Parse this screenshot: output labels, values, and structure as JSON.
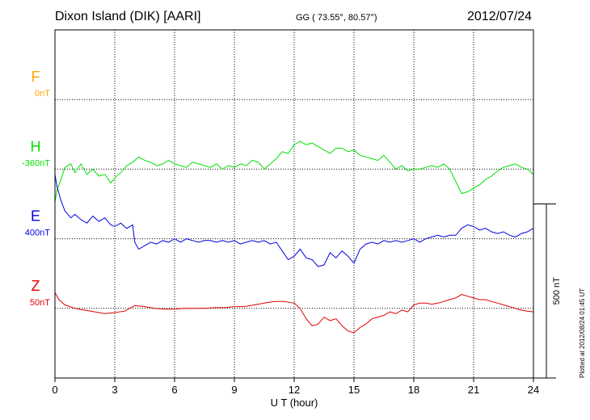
{
  "header": {
    "title": "Dixon Island (DIK)  [AARI]",
    "coords": "GG ( 73.55°,  80.57°)",
    "date": "2012/07/24"
  },
  "footer": {
    "plotted": "Plotted at 2012/08/24 01:45 UT"
  },
  "chart_data": {
    "type": "line",
    "title": "Dixon Island (DIK)  [AARI]",
    "xlabel": "U T (hour)",
    "ylabel": "",
    "xlim": [
      0,
      24
    ],
    "xticks": [
      0,
      3,
      6,
      9,
      12,
      15,
      18,
      21,
      24
    ],
    "xtick_labels": [
      "0",
      "3",
      "6",
      "9",
      "12",
      "15",
      "18",
      "21",
      "24"
    ],
    "grid": true,
    "y_units": "nT (offset per series, 1 grid division = 200 nT)",
    "scale_bar": {
      "label": "500 nT",
      "value_nT": 500
    },
    "series": [
      {
        "name": "F",
        "offset_label": "0nT",
        "color": "#ffa500",
        "baseline_row": 1,
        "x": [],
        "values": []
      },
      {
        "name": "H",
        "offset_label": "-360nT",
        "color": "#00e000",
        "baseline_row": 2,
        "x": [
          0,
          0.1,
          0.3,
          0.5,
          0.8,
          1.0,
          1.3,
          1.6,
          1.9,
          2.2,
          2.5,
          2.8,
          3.0,
          3.3,
          3.6,
          3.9,
          4.2,
          4.5,
          4.8,
          5.1,
          5.4,
          5.7,
          6.0,
          6.3,
          6.6,
          6.9,
          7.2,
          7.5,
          7.8,
          8.1,
          8.4,
          8.7,
          9.0,
          9.3,
          9.6,
          9.9,
          10.2,
          10.5,
          10.8,
          11.1,
          11.4,
          11.7,
          12.0,
          12.3,
          12.6,
          12.9,
          13.2,
          13.5,
          13.8,
          14.1,
          14.4,
          14.7,
          15.0,
          15.3,
          15.6,
          15.9,
          16.2,
          16.5,
          16.8,
          17.1,
          17.4,
          17.7,
          18.0,
          18.3,
          18.6,
          18.9,
          19.2,
          19.5,
          19.8,
          20.1,
          20.4,
          20.7,
          21.0,
          21.3,
          21.6,
          21.9,
          22.2,
          22.5,
          22.8,
          23.1,
          23.4,
          23.7,
          24.0
        ],
        "values": [
          -95,
          -60,
          -30,
          5,
          15,
          -10,
          15,
          -15,
          0,
          -20,
          -15,
          -40,
          -25,
          -10,
          10,
          20,
          35,
          25,
          20,
          10,
          15,
          25,
          15,
          10,
          5,
          20,
          15,
          10,
          5,
          15,
          0,
          10,
          5,
          15,
          10,
          25,
          20,
          0,
          15,
          30,
          50,
          45,
          70,
          80,
          70,
          75,
          65,
          55,
          45,
          60,
          60,
          50,
          55,
          40,
          35,
          30,
          25,
          40,
          20,
          0,
          10,
          -5,
          0,
          0,
          5,
          10,
          5,
          15,
          0,
          -35,
          -70,
          -65,
          -55,
          -45,
          -30,
          -20,
          -5,
          5,
          10,
          15,
          5,
          0,
          -15
        ]
      },
      {
        "name": "E",
        "offset_label": "400nT",
        "color": "#0000e0",
        "baseline_row": 3,
        "x": [
          0,
          0.1,
          0.3,
          0.5,
          0.8,
          1.0,
          1.3,
          1.6,
          1.9,
          2.2,
          2.5,
          2.8,
          3.0,
          3.3,
          3.6,
          3.9,
          4.0,
          4.2,
          4.5,
          4.8,
          5.1,
          5.4,
          5.7,
          6.0,
          6.3,
          6.6,
          6.9,
          7.2,
          7.5,
          7.8,
          8.1,
          8.4,
          8.7,
          9.0,
          9.3,
          9.6,
          9.9,
          10.2,
          10.5,
          10.8,
          11.1,
          11.4,
          11.7,
          12.0,
          12.3,
          12.6,
          12.9,
          13.2,
          13.5,
          13.8,
          14.1,
          14.4,
          14.7,
          15.0,
          15.3,
          15.6,
          15.9,
          16.2,
          16.5,
          16.8,
          17.1,
          17.4,
          17.7,
          18.0,
          18.3,
          18.6,
          18.9,
          19.2,
          19.5,
          19.8,
          20.1,
          20.4,
          20.7,
          21.0,
          21.3,
          21.6,
          21.9,
          22.2,
          22.5,
          22.8,
          23.1,
          23.4,
          23.7,
          24.0
        ],
        "values": [
          185,
          150,
          110,
          80,
          60,
          70,
          55,
          45,
          65,
          50,
          60,
          40,
          35,
          45,
          30,
          40,
          -10,
          -30,
          -20,
          -10,
          -15,
          -5,
          -10,
          0,
          -10,
          0,
          -5,
          -10,
          -5,
          -5,
          -10,
          -5,
          -10,
          -5,
          -15,
          -10,
          -5,
          -10,
          -5,
          -15,
          -10,
          -35,
          -60,
          -50,
          -30,
          -55,
          -60,
          -80,
          -75,
          -40,
          -55,
          -35,
          -50,
          -70,
          -30,
          -15,
          -10,
          -15,
          -5,
          -10,
          -5,
          -10,
          -5,
          0,
          -10,
          0,
          5,
          10,
          5,
          10,
          10,
          30,
          40,
          35,
          25,
          30,
          20,
          15,
          20,
          10,
          5,
          15,
          20,
          30
        ]
      },
      {
        "name": "Z",
        "offset_label": "50nT",
        "color": "#e00000",
        "baseline_row": 4,
        "x": [
          0,
          0.2,
          0.5,
          1.0,
          1.5,
          2.0,
          2.5,
          3.0,
          3.5,
          4.0,
          4.5,
          5.0,
          5.5,
          6.0,
          6.5,
          7.0,
          7.5,
          8.0,
          8.5,
          9.0,
          9.5,
          10.0,
          10.5,
          11.0,
          11.5,
          12.0,
          12.3,
          12.6,
          12.9,
          13.2,
          13.5,
          13.8,
          14.1,
          14.4,
          14.7,
          15.0,
          15.3,
          15.6,
          15.9,
          16.2,
          16.5,
          16.8,
          17.1,
          17.4,
          17.7,
          18.0,
          18.3,
          18.6,
          18.9,
          19.2,
          19.5,
          19.8,
          20.1,
          20.4,
          20.7,
          21.0,
          21.3,
          21.6,
          21.9,
          22.2,
          22.5,
          22.8,
          23.1,
          23.4,
          23.7,
          24.0
        ],
        "values": [
          45,
          25,
          10,
          0,
          -5,
          -10,
          -15,
          -12,
          -8,
          8,
          5,
          0,
          -2,
          -2,
          0,
          0,
          0,
          2,
          2,
          5,
          5,
          10,
          15,
          20,
          20,
          15,
          0,
          -30,
          -50,
          -45,
          -25,
          -35,
          -30,
          -50,
          -65,
          -70,
          -55,
          -45,
          -30,
          -25,
          -20,
          -10,
          -15,
          -5,
          -10,
          10,
          15,
          15,
          12,
          15,
          20,
          25,
          30,
          40,
          35,
          30,
          25,
          25,
          20,
          15,
          10,
          5,
          0,
          -5,
          -8,
          -10
        ]
      }
    ]
  }
}
